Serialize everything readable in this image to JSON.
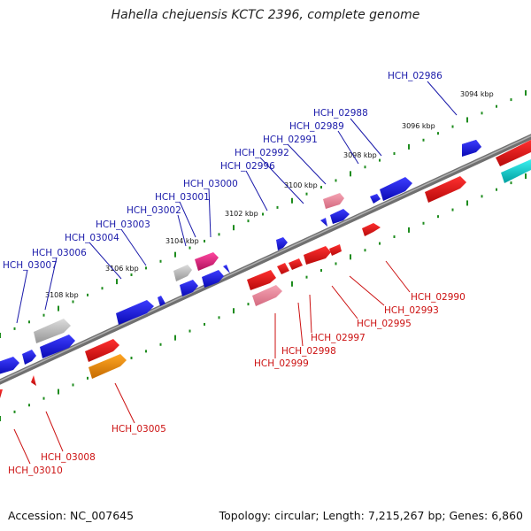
{
  "title": "Hahella chejuensis KCTC 2396, complete genome",
  "footer": {
    "accession": "Accession: NC_007645",
    "stats": "Topology: circular; Length: 7,215,267 bp; Genes: 6,860"
  },
  "colors": {
    "forward_gene": "#1a1ae6",
    "reverse_gene": "#e61414",
    "pink_gene": "#e8829a",
    "magenta_gene": "#e0207c",
    "orange_gene": "#f08a00",
    "cyan_gene": "#00c8c8",
    "grey_gene": "#b4b4b4",
    "forward_label": "#1a1aaa",
    "reverse_label": "#cc1111",
    "tick_dots": "#1e8c1e",
    "backbone": "#8a8a8a"
  },
  "scale_ticks": [
    "3094 kbp",
    "3096 kbp",
    "3098 kbp",
    "3100 kbp",
    "3102 kbp",
    "3104 kbp",
    "3106 kbp",
    "3108 kbp"
  ],
  "forward_labels": [
    "HCH_02986",
    "HCH_02988",
    "HCH_02989",
    "HCH_02991",
    "HCH_02992",
    "HCH_02996",
    "HCH_03000",
    "HCH_03001",
    "HCH_03002",
    "HCH_03003",
    "HCH_03004",
    "HCH_03006",
    "HCH_03007"
  ],
  "reverse_labels": [
    "HCH_02990",
    "HCH_02993",
    "HCH_02995",
    "HCH_02997",
    "HCH_02998",
    "HCH_02999",
    "HCH_03005",
    "HCH_03008",
    "HCH_03010"
  ]
}
